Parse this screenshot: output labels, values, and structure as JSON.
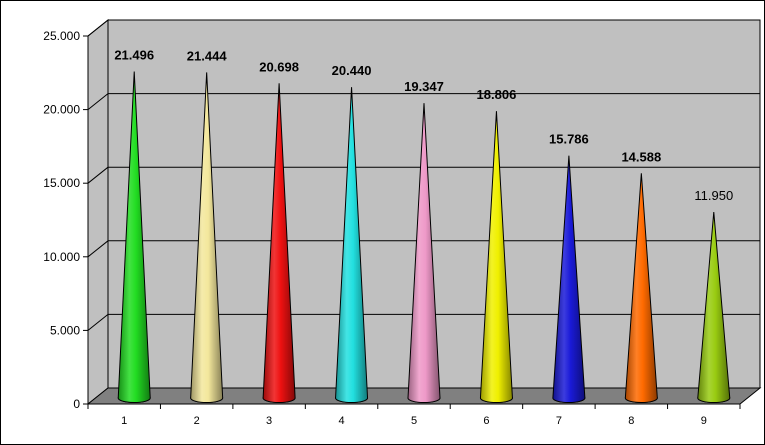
{
  "chart_data": {
    "type": "bar",
    "bar_shape": "cone",
    "three_d": true,
    "categories": [
      "1",
      "2",
      "3",
      "4",
      "5",
      "6",
      "7",
      "8",
      "9"
    ],
    "values": [
      21496,
      21444,
      20698,
      20440,
      19347,
      18806,
      15786,
      14588,
      11950
    ],
    "data_labels": [
      "21.496",
      "21.444",
      "20.698",
      "20.440",
      "19.347",
      "18.806",
      "15.786",
      "14.588",
      "11.950"
    ],
    "data_label_bold": [
      true,
      true,
      true,
      true,
      true,
      true,
      true,
      true,
      false
    ],
    "colors": [
      "#22dd22",
      "#f3e79c",
      "#ee1111",
      "#22e0e0",
      "#ee99c8",
      "#f0f000",
      "#1a1ad8",
      "#ff6a00",
      "#99cc11"
    ],
    "ylim": [
      0,
      25000
    ],
    "yticks": [
      0,
      5000,
      10000,
      15000,
      20000,
      25000
    ],
    "ytick_labels": [
      "0",
      "5.000",
      "10.000",
      "15.000",
      "20.000",
      "25.000"
    ],
    "grid": true,
    "legend": "none",
    "title": "",
    "xlabel": "",
    "ylabel": "",
    "wall_color": "#c0c0c0",
    "floor_color": "#808080"
  }
}
